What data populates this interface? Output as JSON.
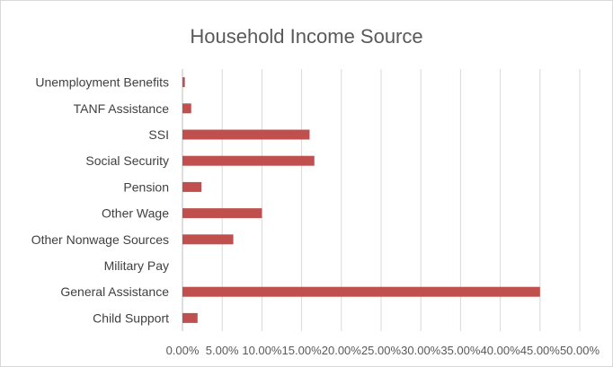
{
  "chart_data": {
    "type": "bar",
    "orientation": "horizontal",
    "title": "Household Income Source",
    "xlabel": "",
    "ylabel": "",
    "categories": [
      "Unemployment Benefits",
      "TANF Assistance",
      "SSI",
      "Social Security",
      "Pension",
      "Other Wage",
      "Other Nonwage Sources",
      "Military Pay",
      "General Assistance",
      "Child Support"
    ],
    "values": [
      0.3,
      1.1,
      16.0,
      16.6,
      2.4,
      10.0,
      6.4,
      0.0,
      45.0,
      1.9
    ],
    "xlim": [
      0,
      50
    ],
    "x_ticks": [
      "0.00%",
      "5.00%",
      "10.00%",
      "15.00%",
      "20.00%",
      "25.00%",
      "30.00%",
      "35.00%",
      "40.00%",
      "45.00%",
      "50.00%"
    ],
    "grid": "vertical",
    "legend": "none",
    "bar_color": "#c0504d",
    "grid_color": "#d9d9d9"
  }
}
